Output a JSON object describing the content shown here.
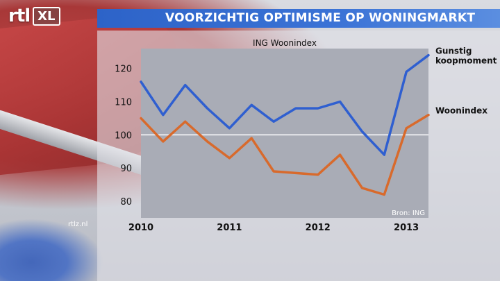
{
  "header": {
    "logo_text": "rtl",
    "logo_badge": "XL",
    "title": "VOORZICHTIG OPTIMISME OP WONINGMARKT"
  },
  "watermark": "rtlz.nl",
  "colors": {
    "title_bar": "#3068cc",
    "series_gunstig": "#2f5fd0",
    "series_woonindex": "#d86a2c",
    "reference_line": "#ffffff"
  },
  "chart_data": {
    "type": "line",
    "title": "ING Woonindex",
    "source": "Bron: ING",
    "xlabel": "",
    "ylabel": "",
    "ylim": [
      75,
      126
    ],
    "yticks": [
      80,
      90,
      100,
      110,
      120
    ],
    "xticks": [
      "2010",
      "2011",
      "2012",
      "2013"
    ],
    "reference_line_y": 100,
    "x": [
      0,
      1,
      2,
      3,
      4,
      5,
      6,
      7,
      8,
      9,
      10,
      11,
      12,
      13
    ],
    "xtick_positions": [
      0,
      4,
      8,
      12
    ],
    "series": [
      {
        "name": "Gunstig koopmoment",
        "label_lines": [
          "Gunstig",
          "koopmoment"
        ],
        "color": "#2f5fd0",
        "values": [
          116,
          106,
          115,
          108,
          102,
          109,
          104,
          108,
          108,
          110,
          101,
          94,
          119,
          124
        ]
      },
      {
        "name": "Woonindex",
        "label_lines": [
          "Woonindex"
        ],
        "color": "#d86a2c",
        "values": [
          105,
          98,
          104,
          98,
          93,
          99,
          89,
          88.5,
          88,
          94,
          84,
          82,
          102,
          106
        ]
      }
    ]
  }
}
